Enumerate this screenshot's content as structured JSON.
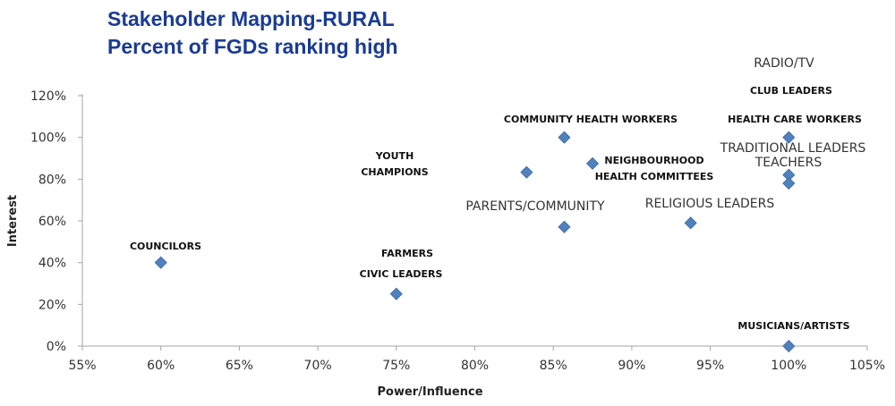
{
  "chart_data": {
    "type": "scatter",
    "title": "Stakeholder Mapping-RURAL",
    "subtitle": "Percent of FGDs ranking high",
    "xlabel": "Power/Influence",
    "ylabel": "Interest",
    "xlim": [
      55,
      105
    ],
    "ylim": [
      0,
      120
    ],
    "x_ticks": [
      "55%",
      "60%",
      "65%",
      "70%",
      "75%",
      "80%",
      "85%",
      "90%",
      "95%",
      "100%",
      "105%"
    ],
    "y_ticks": [
      "0%",
      "20%",
      "40%",
      "60%",
      "80%",
      "100%",
      "120%"
    ],
    "grid": false,
    "marker_color": "#4f81bd",
    "points": [
      {
        "x": 60,
        "y": 40
      },
      {
        "x": 75,
        "y": 25
      },
      {
        "x": 83.3,
        "y": 83.3
      },
      {
        "x": 85.7,
        "y": 100
      },
      {
        "x": 85.7,
        "y": 57.1
      },
      {
        "x": 87.5,
        "y": 87.5
      },
      {
        "x": 93.75,
        "y": 59
      },
      {
        "x": 100,
        "y": 100
      },
      {
        "x": 100,
        "y": 82
      },
      {
        "x": 100,
        "y": 78
      },
      {
        "x": 100,
        "y": 0
      }
    ],
    "annotations": [
      "COUNCILORS",
      "FARMERS",
      "CIVIC LEADERS",
      "YOUTH",
      "CHAMPIONS",
      "COMMUNITY HEALTH WORKERS",
      "PARENTS/COMMUNITY",
      "NEIGHBOURHOOD",
      "HEALTH COMMITTEES",
      "RELIGIOUS LEADERS",
      "RADIO/TV",
      "CLUB LEADERS",
      "HEALTH CARE WORKERS",
      "TRADITIONAL LEADERS",
      "TEACHERS",
      "MUSICIANS/ARTISTS"
    ]
  }
}
